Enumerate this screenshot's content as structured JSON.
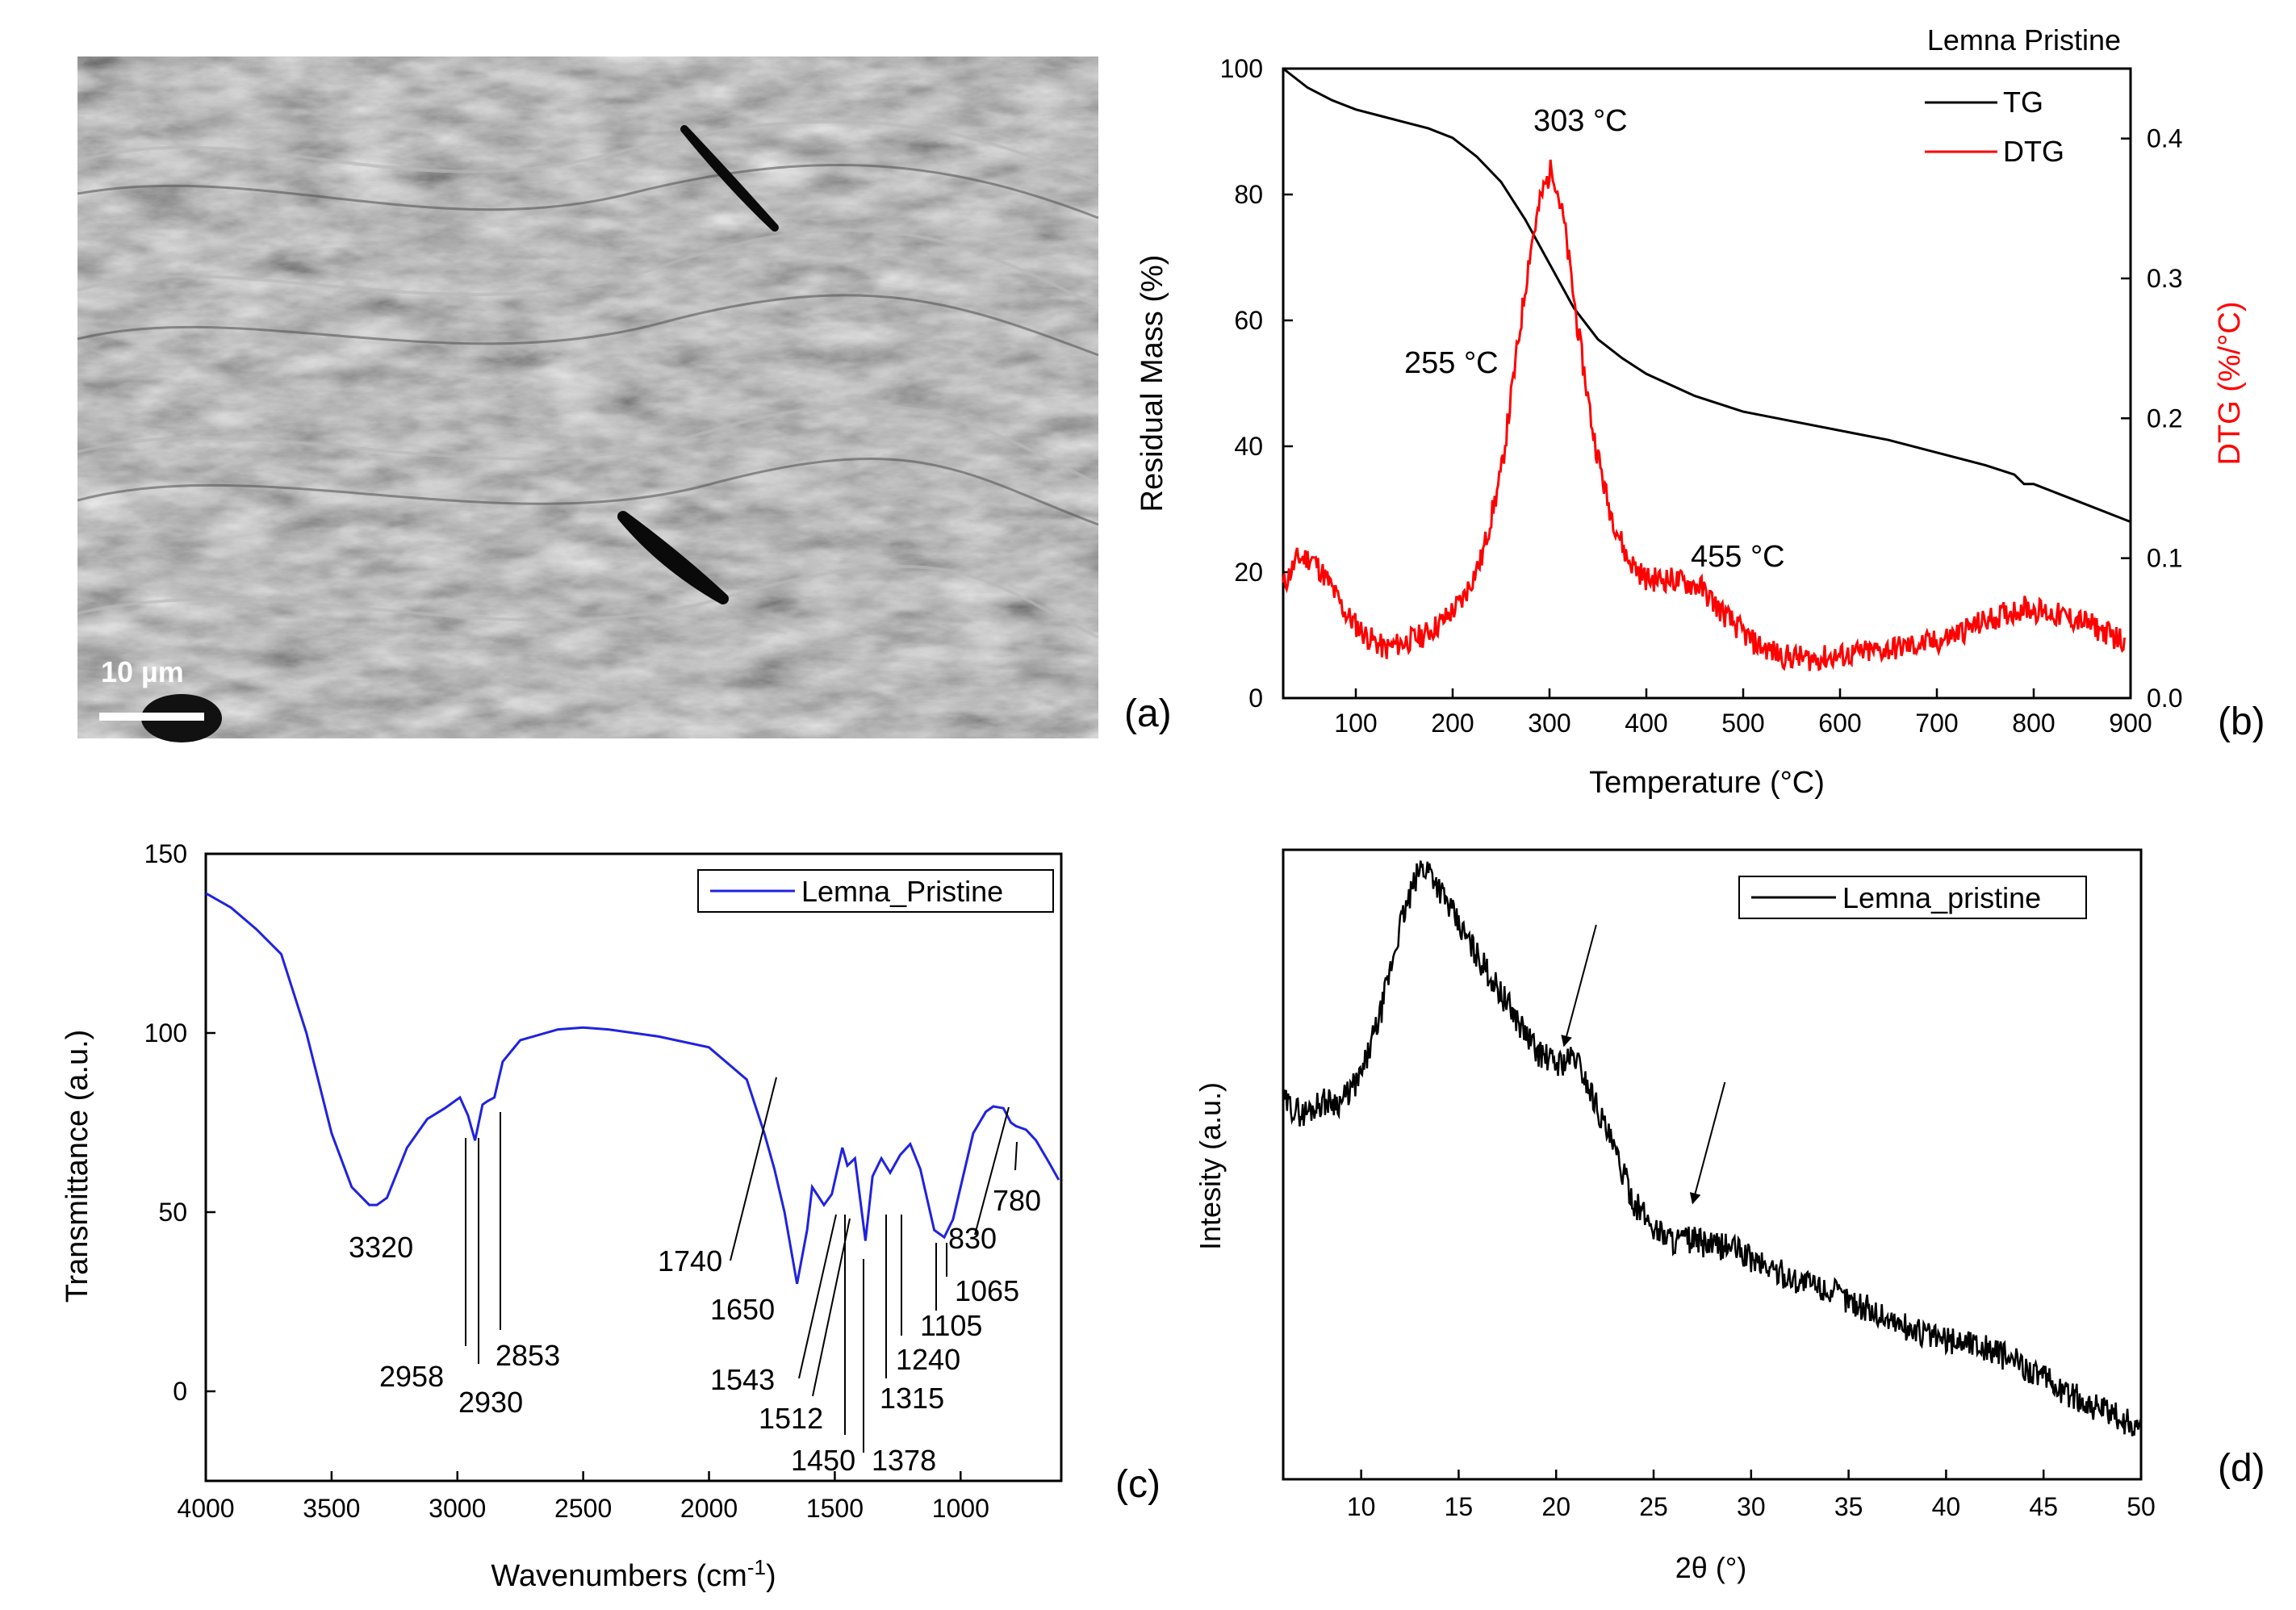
{
  "figure": {
    "panel_labels": [
      "(a)",
      "(b)",
      "(c)",
      "(d)"
    ],
    "colors": {
      "black": "#000000",
      "red": "#ff0000",
      "blue": "#1f22e0",
      "sem_gray": "#8c8c8c"
    }
  },
  "chart_data": [
    {
      "panel": "(a)",
      "type": "image",
      "description_label": "SEM micrograph",
      "scale_bar_label": "10 µm"
    },
    {
      "panel": "(b)",
      "type": "line",
      "title": "Lemna Pristine",
      "xlabel": "Temperature (°C)",
      "ylabel": "Residual Mass (%)",
      "y2label": "DTG (%/°C)",
      "xlim": [
        25,
        900
      ],
      "ylim": [
        0,
        100
      ],
      "y2lim": [
        0,
        0.45
      ],
      "xticks": [
        100,
        200,
        300,
        400,
        500,
        600,
        700,
        800,
        900
      ],
      "yticks": [
        0,
        20,
        40,
        60,
        80,
        100
      ],
      "y2ticks": [
        0.0,
        0.1,
        0.2,
        0.3,
        0.4
      ],
      "legend": [
        "TG",
        "DTG"
      ],
      "series": [
        {
          "name": "TG",
          "axis": "left",
          "color": "#000000",
          "x": [
            25,
            50,
            75,
            100,
            125,
            150,
            175,
            200,
            225,
            250,
            275,
            300,
            325,
            350,
            375,
            400,
            450,
            500,
            550,
            600,
            650,
            700,
            750,
            780,
            790,
            800,
            850,
            900
          ],
          "y": [
            100,
            97,
            95,
            93.5,
            92.5,
            91.5,
            90.5,
            89,
            86,
            82,
            76,
            69,
            62,
            57,
            54,
            51.5,
            48,
            45.5,
            44,
            42.5,
            41,
            39,
            37,
            35.5,
            34,
            34,
            31,
            28
          ]
        },
        {
          "name": "DTG",
          "axis": "right",
          "color": "#ff0000",
          "x": [
            25,
            40,
            55,
            70,
            90,
            110,
            130,
            150,
            170,
            190,
            210,
            230,
            250,
            265,
            280,
            292,
            303,
            315,
            330,
            345,
            360,
            380,
            400,
            425,
            455,
            480,
            510,
            540,
            570,
            600,
            650,
            700,
            750,
            790,
            820,
            850,
            880,
            895
          ],
          "y": [
            0.08,
            0.1,
            0.1,
            0.085,
            0.06,
            0.045,
            0.035,
            0.04,
            0.045,
            0.055,
            0.07,
            0.1,
            0.16,
            0.24,
            0.32,
            0.36,
            0.38,
            0.34,
            0.26,
            0.19,
            0.14,
            0.1,
            0.085,
            0.085,
            0.08,
            0.06,
            0.04,
            0.03,
            0.028,
            0.03,
            0.035,
            0.04,
            0.055,
            0.065,
            0.06,
            0.055,
            0.045,
            0.04
          ]
        }
      ],
      "annotations": [
        {
          "text": "303 °C",
          "x": 303,
          "y": 0.38
        },
        {
          "text": "255 °C",
          "x": 255,
          "y": 0.2
        },
        {
          "text": "455 °C",
          "x": 455,
          "y": 0.09
        }
      ]
    },
    {
      "panel": "(c)",
      "type": "line",
      "xlabel": "Wavenumbers (cm",
      "xlabel_sup": "-1",
      "xlabel_end": ")",
      "ylabel": "Transmittance (a.u.)",
      "xlim": [
        4000,
        600
      ],
      "ylim": [
        -25,
        150
      ],
      "xticks": [
        4000,
        3500,
        3000,
        2500,
        2000,
        1500,
        1000
      ],
      "yticks": [
        0,
        50,
        100,
        150
      ],
      "legend": [
        "Lemna_Pristine"
      ],
      "series": [
        {
          "name": "Lemna_Pristine",
          "color": "#1f22e0",
          "x": [
            4000,
            3900,
            3800,
            3700,
            3600,
            3500,
            3420,
            3350,
            3320,
            3280,
            3200,
            3120,
            3050,
            2990,
            2958,
            2930,
            2900,
            2880,
            2853,
            2820,
            2750,
            2600,
            2500,
            2400,
            2200,
            2000,
            1850,
            1780,
            1740,
            1700,
            1650,
            1610,
            1590,
            1543,
            1512,
            1470,
            1450,
            1420,
            1378,
            1350,
            1315,
            1280,
            1240,
            1200,
            1160,
            1105,
            1065,
            1030,
            990,
            950,
            900,
            870,
            830,
            800,
            780,
            740,
            700,
            650,
            610
          ],
          "y": [
            139,
            135,
            129,
            122,
            100,
            72,
            57,
            52,
            52,
            54,
            68,
            76,
            79,
            82,
            77,
            70,
            80,
            81,
            82,
            92,
            98,
            101,
            101.5,
            101,
            99,
            96,
            87,
            72,
            62,
            50,
            30,
            45,
            57,
            52,
            55,
            68,
            63,
            65,
            42,
            60,
            65,
            61,
            66,
            69,
            62,
            45,
            43,
            48,
            60,
            72,
            78,
            79.5,
            79,
            75,
            74,
            73,
            70,
            64,
            59
          ]
        }
      ],
      "peak_labels": [
        "3320",
        "2958",
        "2930",
        "2853",
        "1740",
        "1650",
        "1543",
        "1512",
        "1450",
        "1378",
        "1315",
        "1240",
        "1105",
        "1065",
        "830",
        "780"
      ]
    },
    {
      "panel": "(d)",
      "type": "line",
      "xlabel": "2θ (°)",
      "ylabel": "Intesity (a.u.)",
      "xlim": [
        6,
        50
      ],
      "xticks": [
        10,
        15,
        20,
        25,
        30,
        35,
        40,
        45,
        50
      ],
      "legend": [
        "Lemna_pristine"
      ],
      "series": [
        {
          "name": "Lemna_pristine",
          "color": "#000000",
          "x": [
            6,
            7,
            8,
            9,
            10,
            11,
            12,
            13,
            13.5,
            14,
            15,
            16,
            17,
            18,
            19,
            20,
            21,
            22,
            23,
            24,
            25,
            26,
            27,
            28,
            29,
            30,
            32,
            34,
            36,
            38,
            40,
            41,
            42,
            44,
            46,
            48,
            50
          ],
          "y": [
            0.6,
            0.58,
            0.6,
            0.6,
            0.64,
            0.74,
            0.88,
            0.97,
            0.97,
            0.94,
            0.88,
            0.83,
            0.78,
            0.73,
            0.68,
            0.66,
            0.67,
            0.6,
            0.52,
            0.44,
            0.4,
            0.38,
            0.38,
            0.37,
            0.37,
            0.35,
            0.32,
            0.3,
            0.27,
            0.24,
            0.22,
            0.22,
            0.21,
            0.18,
            0.14,
            0.11,
            0.08
          ]
        }
      ],
      "arrows": [
        {
          "x": 20.4,
          "y": 0.65
        },
        {
          "x": 27,
          "y": 0.4
        }
      ]
    }
  ]
}
